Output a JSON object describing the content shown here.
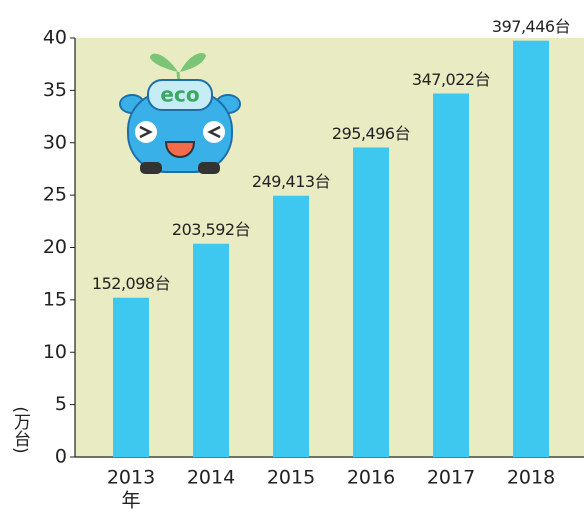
{
  "chart_data": {
    "type": "bar",
    "y_axis_label": "(万台)",
    "x_axis_label": "年",
    "illustration_text": "eco",
    "categories": [
      "2013",
      "2014",
      "2015",
      "2016",
      "2017",
      "2018"
    ],
    "values": [
      15.2098,
      20.3592,
      24.9413,
      29.5496,
      34.7022,
      39.7446
    ],
    "value_labels": [
      "152,098台",
      "203,592台",
      "249,413台",
      "295,496台",
      "347,022台",
      "397,446台"
    ],
    "color": "#3ec8f0",
    "background": "#e9ecc2",
    "ylim": [
      0,
      40
    ],
    "yticks": [
      0,
      5,
      10,
      15,
      20,
      25,
      30,
      35,
      40
    ],
    "grid": false
  }
}
